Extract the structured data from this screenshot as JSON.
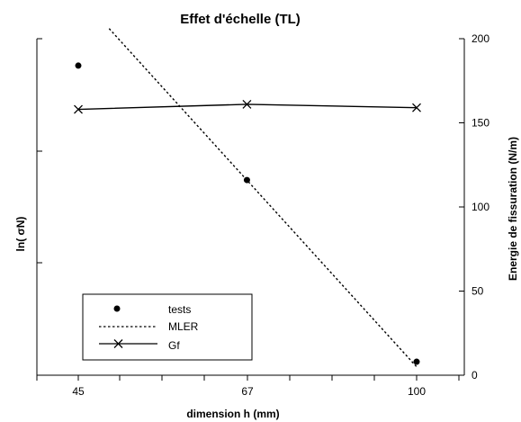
{
  "chart_data": {
    "type": "line",
    "title": "Effet d'échelle (TL)",
    "xlabel": "dimension h (mm)",
    "ylabel_left": "ln( σN)",
    "ylabel_right": "Energie de fissuration (N/m)",
    "x_categories": [
      "45",
      "67",
      "100"
    ],
    "x_scale": "log",
    "y_right_ticks": [
      "0",
      "50",
      "100",
      "150",
      "200"
    ],
    "y_right_lim": [
      0,
      200
    ],
    "y_left_unlabeled": true,
    "legend": {
      "position": "bottom-left",
      "entries": [
        "tests",
        "MLER",
        "Gf"
      ]
    },
    "series": [
      {
        "name": "tests",
        "style": "points",
        "marker": "filled-circle",
        "color": "#000000",
        "points": [
          {
            "x": 45,
            "y_right": 184
          },
          {
            "x": 67,
            "y_right": 116
          },
          {
            "x": 100,
            "y_right": 8
          }
        ]
      },
      {
        "name": "MLER",
        "style": "dotted-line",
        "color": "#000000",
        "points": [
          {
            "x": 48.4,
            "y_right": 206
          },
          {
            "x": 100,
            "y_right": 5
          }
        ]
      },
      {
        "name": "Gf",
        "style": "solid-line",
        "marker": "x",
        "color": "#000000",
        "points": [
          {
            "x": 45,
            "y_right": 158
          },
          {
            "x": 67,
            "y_right": 161
          },
          {
            "x": 100,
            "y_right": 159
          }
        ]
      }
    ]
  }
}
